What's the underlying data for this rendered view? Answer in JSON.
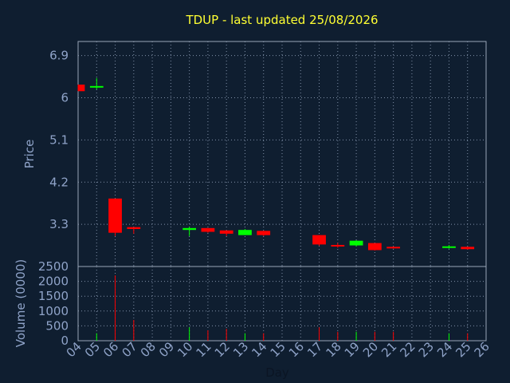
{
  "chart_data": {
    "type": "candlestick",
    "title": "TDUP - last updated 25/08/2026",
    "price_panel": {
      "ylabel": "Price",
      "ylim": [
        2.4,
        7.2
      ],
      "yticks": [
        3.3,
        4.2,
        5.1,
        6,
        6.9
      ],
      "ytick_labels": [
        "3.3",
        "4.2",
        "5.1",
        "6",
        "6.9"
      ]
    },
    "volume_panel": {
      "ylabel": "Volume (0000)",
      "ylim": [
        0,
        2500
      ],
      "yticks": [
        0,
        500,
        1000,
        1500,
        2000,
        2500
      ],
      "ytick_labels": [
        "0",
        "500",
        "1000",
        "1500",
        "2000",
        "2500"
      ]
    },
    "xlabel": "Day",
    "x_ticks": [
      "04",
      "05",
      "06",
      "07",
      "08",
      "09",
      "10",
      "11",
      "12",
      "13",
      "14",
      "15",
      "16",
      "17",
      "18",
      "19",
      "20",
      "21",
      "22",
      "23",
      "24",
      "25",
      "26"
    ],
    "colors": {
      "up": "#00ff00",
      "down": "#ff0000",
      "title": "#ffff33",
      "text": "#8fa3c8"
    },
    "candles": [
      {
        "day": "04",
        "open": 6.28,
        "high": 6.28,
        "low": 6.14,
        "close": 6.14,
        "volume": 0
      },
      {
        "day": "05",
        "open": 6.23,
        "high": 6.42,
        "low": 6.18,
        "close": 6.25,
        "volume": 250
      },
      {
        "day": "06",
        "open": 3.85,
        "high": 3.85,
        "low": 3.05,
        "close": 3.12,
        "volume": 2200
      },
      {
        "day": "07",
        "open": 3.24,
        "high": 3.24,
        "low": 3.1,
        "close": 3.2,
        "volume": 700
      },
      {
        "day": "10",
        "open": 3.18,
        "high": 3.25,
        "low": 3.05,
        "close": 3.22,
        "volume": 450
      },
      {
        "day": "11",
        "open": 3.22,
        "high": 3.22,
        "low": 3.12,
        "close": 3.14,
        "volume": 350
      },
      {
        "day": "12",
        "open": 3.17,
        "high": 3.17,
        "low": 3.05,
        "close": 3.1,
        "volume": 400
      },
      {
        "day": "13",
        "open": 3.07,
        "high": 3.2,
        "low": 3.07,
        "close": 3.18,
        "volume": 250
      },
      {
        "day": "14",
        "open": 3.16,
        "high": 3.16,
        "low": 3.05,
        "close": 3.07,
        "volume": 250
      },
      {
        "day": "17",
        "open": 3.07,
        "high": 3.07,
        "low": 2.84,
        "close": 2.87,
        "volume": 450
      },
      {
        "day": "18",
        "open": 2.86,
        "high": 2.9,
        "low": 2.8,
        "close": 2.83,
        "volume": 300
      },
      {
        "day": "19",
        "open": 2.85,
        "high": 2.96,
        "low": 2.83,
        "close": 2.95,
        "volume": 300
      },
      {
        "day": "20",
        "open": 2.9,
        "high": 2.9,
        "low": 2.74,
        "close": 2.75,
        "volume": 300
      },
      {
        "day": "21",
        "open": 2.82,
        "high": 2.83,
        "low": 2.78,
        "close": 2.79,
        "volume": 300
      },
      {
        "day": "24",
        "open": 2.81,
        "high": 2.86,
        "low": 2.78,
        "close": 2.83,
        "volume": 250
      },
      {
        "day": "25",
        "open": 2.82,
        "high": 2.82,
        "low": 2.76,
        "close": 2.77,
        "volume": 250
      }
    ]
  }
}
